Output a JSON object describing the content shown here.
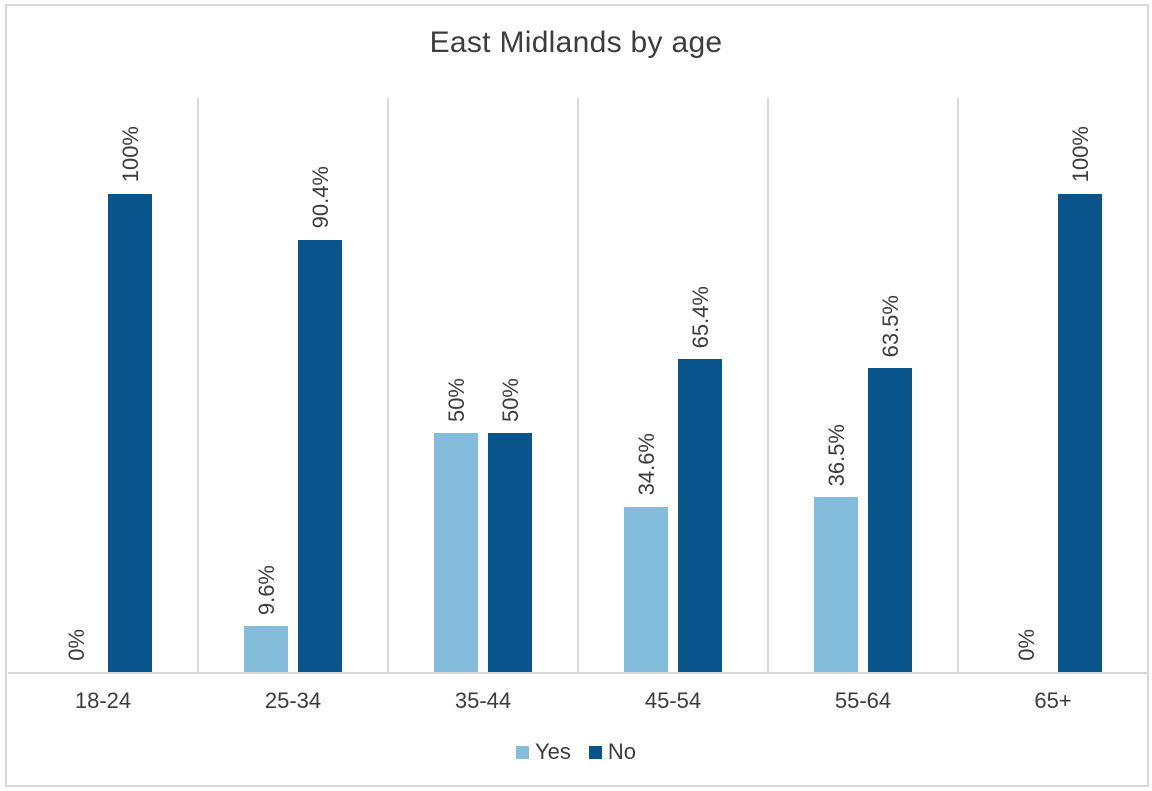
{
  "chart_data": {
    "type": "bar",
    "title": "East Midlands by age",
    "categories": [
      "18-24",
      "25-34",
      "35-44",
      "45-54",
      "55-64",
      "65+"
    ],
    "series": [
      {
        "name": "Yes",
        "color": "#84BCDB",
        "values": [
          0,
          9.6,
          50,
          34.6,
          36.5,
          0
        ],
        "data_labels": [
          "0%",
          "9.6%",
          "50%",
          "34.6%",
          "36.5%",
          "0%"
        ]
      },
      {
        "name": "No",
        "color": "#0A548C",
        "values": [
          100,
          90.4,
          50,
          65.4,
          63.5,
          100
        ],
        "data_labels": [
          "100%",
          "90.4%",
          "50%",
          "65.4%",
          "63.5%",
          "100%"
        ]
      }
    ],
    "xlabel": "",
    "ylabel": "",
    "ylim": [
      0,
      120
    ],
    "y_axis_labels_visible": false,
    "grid": "vertical separators between categories",
    "legend_position": "bottom",
    "data_label_rotation": 90
  },
  "style": {
    "background": "#FFFFFF",
    "frame_color": "#D8D8D8",
    "gridline_color": "#D9D9D9",
    "axis_line_color": "#D9D9D9",
    "text_color": "#3D3D3D"
  }
}
